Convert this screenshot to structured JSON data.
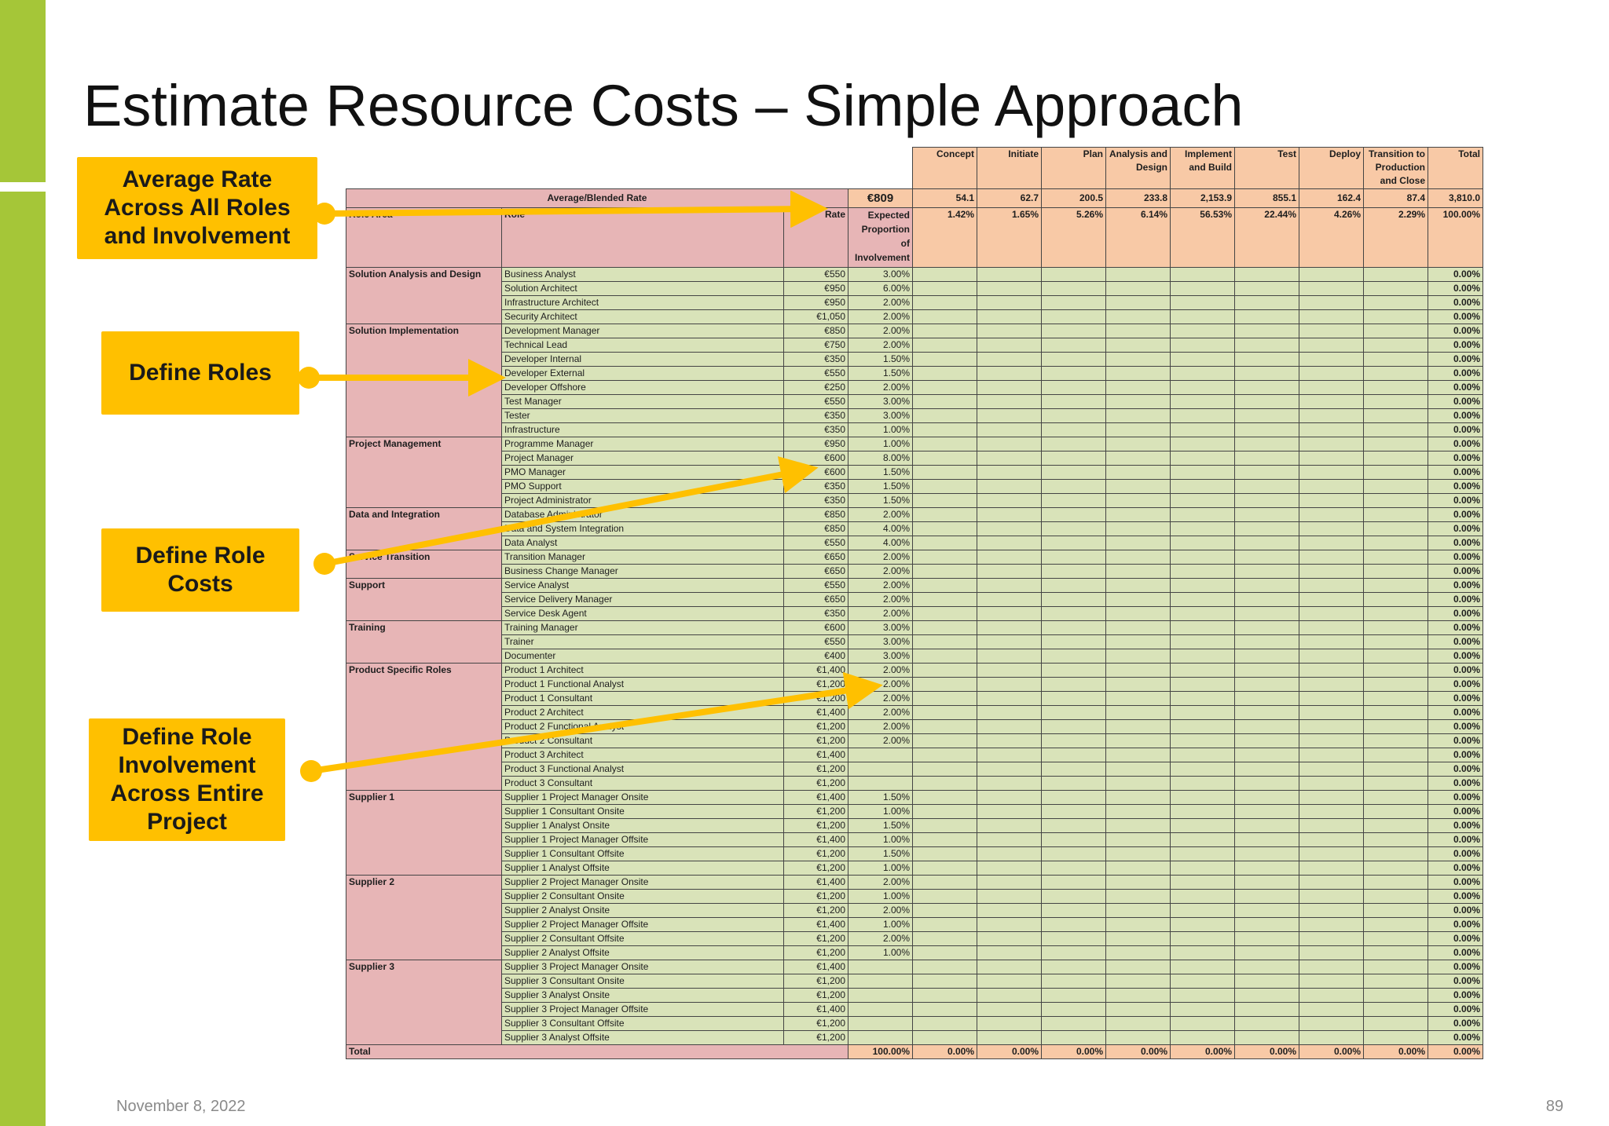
{
  "title": "Estimate Resource Costs – Simple Approach",
  "footer": {
    "date": "November 8, 2022",
    "page": "89"
  },
  "callouts": {
    "average_rate": "Average Rate Across All Roles and Involvement",
    "define_roles": "Define Roles",
    "define_role_costs": "Define Role Costs",
    "define_involvement": "Define Role Involvement Across Entire Project"
  },
  "table": {
    "phases": [
      {
        "name": "Concept",
        "days": "54.1",
        "proportion": "1.42%",
        "total": "0.00%"
      },
      {
        "name": "Initiate",
        "days": "62.7",
        "proportion": "1.65%",
        "total": "0.00%"
      },
      {
        "name": "Plan",
        "days": "200.5",
        "proportion": "5.26%",
        "total": "0.00%"
      },
      {
        "name": "Analysis and Design",
        "days": "233.8",
        "proportion": "6.14%",
        "total": "0.00%"
      },
      {
        "name": "Implement and Build",
        "days": "2,153.9",
        "proportion": "56.53%",
        "total": "0.00%"
      },
      {
        "name": "Test",
        "days": "855.1",
        "proportion": "22.44%",
        "total": "0.00%"
      },
      {
        "name": "Deploy",
        "days": "162.4",
        "proportion": "4.26%",
        "total": "0.00%"
      },
      {
        "name": "Transition to Production and Close",
        "days": "87.4",
        "proportion": "2.29%",
        "total": "0.00%"
      }
    ],
    "total_column": {
      "name": "Total",
      "days": "3,810.0",
      "proportion": "100.00%"
    },
    "average_rate_label": "Average/Blended Rate",
    "average_rate_value": "€809",
    "headers": {
      "role_area": "Role Area",
      "role": "Role",
      "rate": "Rate",
      "expected": "Expected Proportion of Involvement"
    },
    "row_total_value": "0.00%",
    "groups": [
      {
        "area": "Solution Analysis and Design",
        "roles": [
          {
            "role": "Business Analyst",
            "rate": "€550",
            "exp": "3.00%"
          },
          {
            "role": "Solution Architect",
            "rate": "€950",
            "exp": "6.00%"
          },
          {
            "role": "Infrastructure Architect",
            "rate": "€950",
            "exp": "2.00%"
          },
          {
            "role": "Security Architect",
            "rate": "€1,050",
            "exp": "2.00%"
          }
        ]
      },
      {
        "area": "Solution Implementation",
        "roles": [
          {
            "role": "Development Manager",
            "rate": "€850",
            "exp": "2.00%"
          },
          {
            "role": "Technical Lead",
            "rate": "€750",
            "exp": "2.00%"
          },
          {
            "role": "Developer Internal",
            "rate": "€350",
            "exp": "1.50%"
          },
          {
            "role": "Developer External",
            "rate": "€550",
            "exp": "1.50%"
          },
          {
            "role": "Developer Offshore",
            "rate": "€250",
            "exp": "2.00%"
          },
          {
            "role": "Test Manager",
            "rate": "€550",
            "exp": "3.00%"
          },
          {
            "role": "Tester",
            "rate": "€350",
            "exp": "3.00%"
          },
          {
            "role": "Infrastructure",
            "rate": "€350",
            "exp": "1.00%"
          }
        ]
      },
      {
        "area": "Project Management",
        "roles": [
          {
            "role": "Programme Manager",
            "rate": "€950",
            "exp": "1.00%"
          },
          {
            "role": "Project Manager",
            "rate": "€600",
            "exp": "8.00%"
          },
          {
            "role": "PMO Manager",
            "rate": "€600",
            "exp": "1.50%"
          },
          {
            "role": "PMO Support",
            "rate": "€350",
            "exp": "1.50%"
          },
          {
            "role": "Project Administrator",
            "rate": "€350",
            "exp": "1.50%"
          }
        ]
      },
      {
        "area": "Data and Integration",
        "roles": [
          {
            "role": "Database Administrator",
            "rate": "€850",
            "exp": "2.00%"
          },
          {
            "role": "Data and System Integration",
            "rate": "€850",
            "exp": "4.00%"
          },
          {
            "role": "Data Analyst",
            "rate": "€550",
            "exp": "4.00%"
          }
        ]
      },
      {
        "area": "Service Transition",
        "roles": [
          {
            "role": "Transition Manager",
            "rate": "€650",
            "exp": "2.00%"
          },
          {
            "role": "Business Change Manager",
            "rate": "€650",
            "exp": "2.00%"
          }
        ]
      },
      {
        "area": "Support",
        "roles": [
          {
            "role": "Service Analyst",
            "rate": "€550",
            "exp": "2.00%"
          },
          {
            "role": "Service Delivery Manager",
            "rate": "€650",
            "exp": "2.00%"
          },
          {
            "role": "Service Desk Agent",
            "rate": "€350",
            "exp": "2.00%"
          }
        ]
      },
      {
        "area": "Training",
        "roles": [
          {
            "role": "Training Manager",
            "rate": "€600",
            "exp": "3.00%"
          },
          {
            "role": "Trainer",
            "rate": "€550",
            "exp": "3.00%"
          },
          {
            "role": "Documenter",
            "rate": "€400",
            "exp": "3.00%"
          }
        ]
      },
      {
        "area": "Product Specific Roles",
        "roles": [
          {
            "role": "Product 1 Architect",
            "rate": "€1,400",
            "exp": "2.00%"
          },
          {
            "role": "Product 1 Functional Analyst",
            "rate": "€1,200",
            "exp": "2.00%"
          },
          {
            "role": "Product 1 Consultant",
            "rate": "€1,200",
            "exp": "2.00%"
          },
          {
            "role": "Product 2 Architect",
            "rate": "€1,400",
            "exp": "2.00%"
          },
          {
            "role": "Product 2 Functional Analyst",
            "rate": "€1,200",
            "exp": "2.00%"
          },
          {
            "role": "Product 2 Consultant",
            "rate": "€1,200",
            "exp": "2.00%"
          },
          {
            "role": "Product 3 Architect",
            "rate": "€1,400",
            "exp": ""
          },
          {
            "role": "Product 3 Functional Analyst",
            "rate": "€1,200",
            "exp": ""
          },
          {
            "role": "Product 3 Consultant",
            "rate": "€1,200",
            "exp": ""
          }
        ]
      },
      {
        "area": "Supplier 1",
        "roles": [
          {
            "role": "Supplier 1 Project Manager Onsite",
            "rate": "€1,400",
            "exp": "1.50%"
          },
          {
            "role": "Supplier 1 Consultant Onsite",
            "rate": "€1,200",
            "exp": "1.00%"
          },
          {
            "role": "Supplier 1 Analyst Onsite",
            "rate": "€1,200",
            "exp": "1.50%"
          },
          {
            "role": "Supplier 1 Project Manager Offsite",
            "rate": "€1,400",
            "exp": "1.00%"
          },
          {
            "role": "Supplier 1 Consultant Offsite",
            "rate": "€1,200",
            "exp": "1.50%"
          },
          {
            "role": "Supplier 1 Analyst Offsite",
            "rate": "€1,200",
            "exp": "1.00%"
          }
        ]
      },
      {
        "area": "Supplier 2",
        "roles": [
          {
            "role": "Supplier 2 Project Manager Onsite",
            "rate": "€1,400",
            "exp": "2.00%"
          },
          {
            "role": "Supplier 2 Consultant Onsite",
            "rate": "€1,200",
            "exp": "1.00%"
          },
          {
            "role": "Supplier 2 Analyst Onsite",
            "rate": "€1,200",
            "exp": "2.00%"
          },
          {
            "role": "Supplier 2 Project Manager Offsite",
            "rate": "€1,400",
            "exp": "1.00%"
          },
          {
            "role": "Supplier 2 Consultant Offsite",
            "rate": "€1,200",
            "exp": "2.00%"
          },
          {
            "role": "Supplier 2 Analyst Offsite",
            "rate": "€1,200",
            "exp": "1.00%"
          }
        ]
      },
      {
        "area": "Supplier 3",
        "roles": [
          {
            "role": "Supplier 3 Project Manager Onsite",
            "rate": "€1,400",
            "exp": ""
          },
          {
            "role": "Supplier 3 Consultant Onsite",
            "rate": "€1,200",
            "exp": ""
          },
          {
            "role": "Supplier 3 Analyst Onsite",
            "rate": "€1,200",
            "exp": ""
          },
          {
            "role": "Supplier 3 Project Manager Offsite",
            "rate": "€1,400",
            "exp": ""
          },
          {
            "role": "Supplier 3 Consultant Offsite",
            "rate": "€1,200",
            "exp": ""
          },
          {
            "role": "Supplier 3 Analyst Offsite",
            "rate": "€1,200",
            "exp": ""
          }
        ]
      }
    ],
    "total_row": {
      "label": "Total",
      "expected": "100.00%",
      "phase_values": [
        "0.00%",
        "0.00%",
        "0.00%",
        "0.00%",
        "0.00%",
        "0.00%",
        "0.00%",
        "0.00%"
      ],
      "total": "0.00%"
    }
  },
  "colors": {
    "accent_green": "#a5c638",
    "callout_yellow": "#ffc000",
    "arrow": "#ffc000",
    "header_orange": "#f8c9a6",
    "label_pink": "#e7b5b6",
    "data_green": "#d9e3b9"
  }
}
